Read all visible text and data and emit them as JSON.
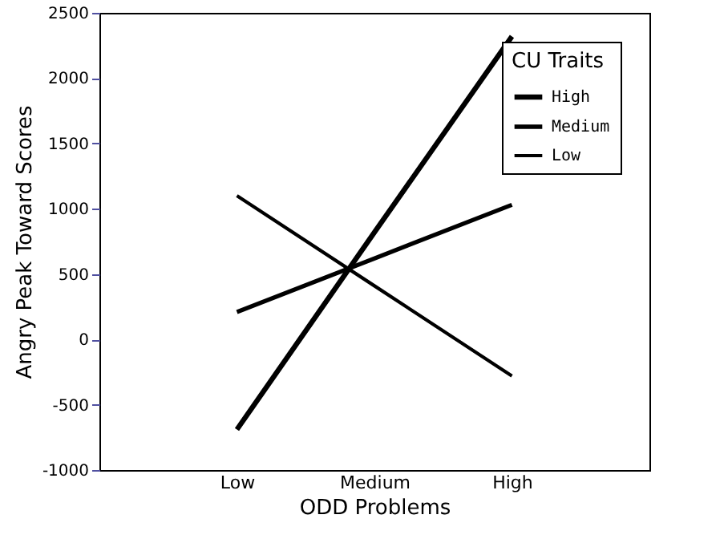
{
  "chart_data": {
    "type": "line",
    "xlabel": "ODD Problems",
    "ylabel": "Angry Peak Toward Scores",
    "legend_title": "CU Traits",
    "legend": "top right",
    "grid": false,
    "marker": "none",
    "categories": [
      "Low",
      "Medium",
      "High"
    ],
    "ylim": [
      -1000,
      2500
    ],
    "yticks": [
      -1000,
      -500,
      0,
      500,
      1000,
      1500,
      2000,
      2500
    ],
    "series": [
      {
        "name": "High",
        "color": "#000000",
        "values": [
          -690,
          820,
          2320
        ]
      },
      {
        "name": "Medium",
        "color": "#000000",
        "values": [
          210,
          620,
          1030
        ]
      },
      {
        "name": "Low",
        "color": "#000000",
        "values": [
          1100,
          410,
          -280
        ]
      }
    ]
  }
}
